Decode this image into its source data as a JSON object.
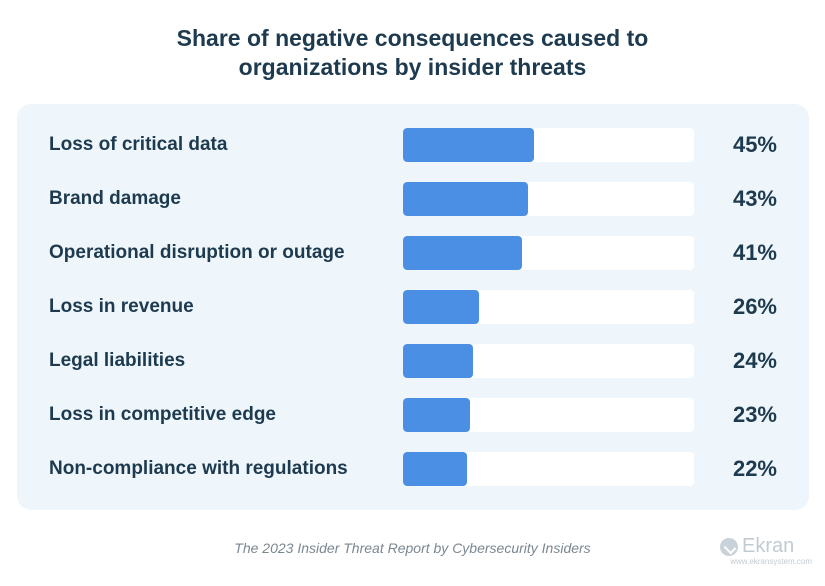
{
  "chart_data": {
    "type": "bar",
    "orientation": "horizontal",
    "title_lines": [
      "Share of negative consequences caused to",
      "organizations by insider threats"
    ],
    "categories": [
      "Loss of critical data",
      "Brand damage",
      "Operational disruption or outage",
      "Loss in revenue",
      "Legal liabilities",
      "Loss in competitive edge",
      "Non-compliance with regulations"
    ],
    "values": [
      45,
      43,
      41,
      26,
      24,
      23,
      22
    ],
    "value_labels": [
      "45%",
      "43%",
      "41%",
      "26%",
      "24%",
      "23%",
      "22%"
    ],
    "xlim": [
      0,
      100
    ],
    "grid": false,
    "legend": "none",
    "bar_color": "#4a8fe3",
    "track_color": "#ffffff"
  },
  "source": "The 2023 Insider Threat Report by Cybersecurity Insiders",
  "logo": {
    "name": "Ekran",
    "url": "www.ekransystem.com"
  }
}
